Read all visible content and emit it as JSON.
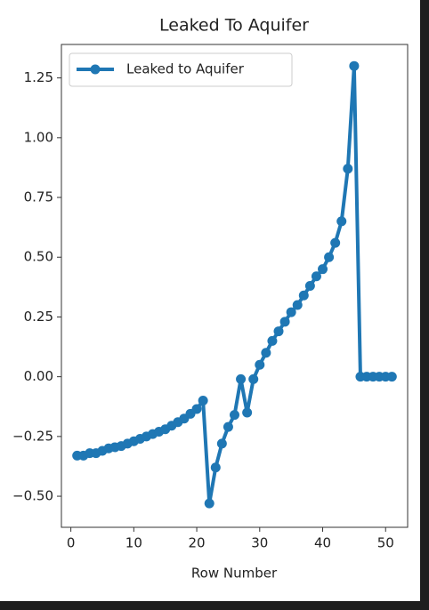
{
  "chart_data": {
    "type": "line",
    "title": "Leaked To Aquifer",
    "x_label": "Row Number",
    "x": [
      1,
      2,
      3,
      4,
      5,
      6,
      7,
      8,
      9,
      10,
      11,
      12,
      13,
      14,
      15,
      16,
      17,
      18,
      19,
      20,
      21,
      22,
      23,
      24,
      25,
      26,
      27,
      28,
      29,
      30,
      31,
      32,
      33,
      34,
      35,
      36,
      37,
      38,
      39,
      40,
      41,
      42,
      43,
      44,
      45,
      46,
      47,
      48,
      49,
      50,
      51
    ],
    "series": [
      {
        "name": "Leaked to Aquifer",
        "color": "#1f77b4",
        "values": [
          -0.33,
          -0.33,
          -0.32,
          -0.32,
          -0.31,
          -0.3,
          -0.295,
          -0.29,
          -0.28,
          -0.27,
          -0.26,
          -0.25,
          -0.24,
          -0.23,
          -0.22,
          -0.205,
          -0.19,
          -0.175,
          -0.155,
          -0.135,
          -0.1,
          -0.53,
          -0.38,
          -0.28,
          -0.21,
          -0.16,
          -0.01,
          -0.15,
          -0.01,
          0.05,
          0.1,
          0.15,
          0.19,
          0.23,
          0.27,
          0.3,
          0.34,
          0.38,
          0.42,
          0.45,
          0.5,
          0.56,
          0.65,
          0.87,
          1.3,
          0,
          0,
          0,
          0,
          0,
          0
        ]
      }
    ],
    "xlim": [
      -1.5,
      53.5
    ],
    "xticks": [
      0,
      10,
      20,
      30,
      40,
      50
    ],
    "ylim": [
      -0.63,
      1.39
    ],
    "yticks": [
      {
        "value": -0.5,
        "label": "−0.50"
      },
      {
        "value": -0.25,
        "label": "−0.25"
      },
      {
        "value": 0,
        "label": "0.00"
      },
      0.25,
      {
        "value": 0.5,
        "label": "0.50"
      },
      0.75,
      {
        "value": 1,
        "label": "1.00"
      },
      1.25
    ],
    "legend": "upper left"
  }
}
